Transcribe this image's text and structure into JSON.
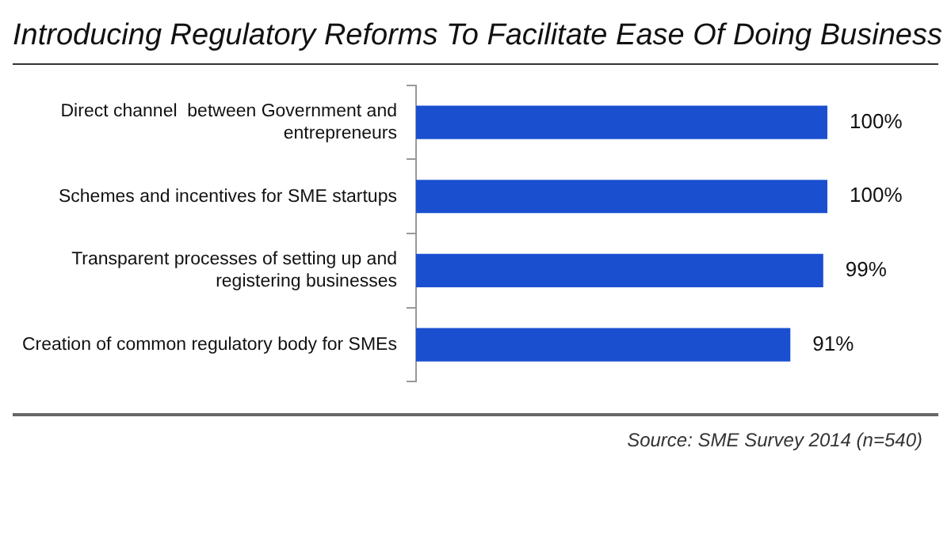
{
  "chart_data": {
    "type": "bar",
    "orientation": "horizontal",
    "title": "Introducing Regulatory Reforms To Facilitate Ease Of Doing Business",
    "categories": [
      "Direct channel  between Government and entrepreneurs",
      "Schemes and incentives for SME startups",
      "Transparent processes of setting up and registering businesses",
      "Creation of common regulatory body for SMEs"
    ],
    "values": [
      100,
      100,
      99,
      91
    ],
    "value_labels": [
      "100%",
      "100%",
      "99%",
      "91%"
    ],
    "color": "#1a4fd0",
    "annotations": [
      "Source: SME Survey 2014 (n=540)"
    ]
  }
}
